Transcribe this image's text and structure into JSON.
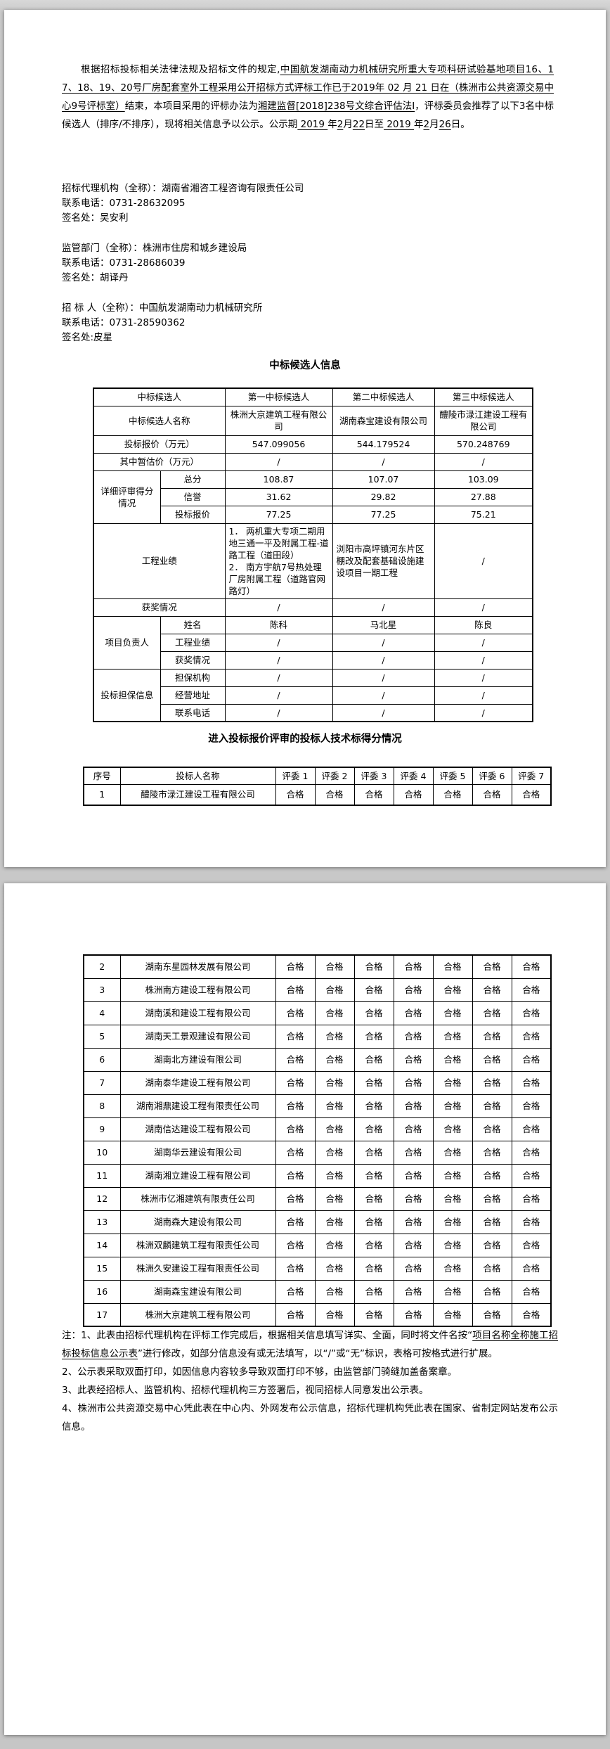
{
  "page1": {
    "intro_segments": [
      {
        "t": "根据招标投标相关法律法规及招标文件的规定,"
      },
      {
        "t": "中国航发湖南动力机械研究所重大专项科研试验基地项目16、17、18、19、20号厂房配套室外工程采用公开招标方式评标工作已于2019年 02 月 21 日在（株洲市公共资源交易中心9号评标室）",
        "u": true
      },
      {
        "t": "结束，本项目采用的评标办法为"
      },
      {
        "t": "湘建监督[2018]238号文综合评估法I",
        "u": true
      },
      {
        "t": "，评标委员会推荐了以下3名中标候选人（排序/不排序），现将相关信息予以公示。公示期"
      },
      {
        "t": " 2019 ",
        "u": true
      },
      {
        "t": "年"
      },
      {
        "t": "2",
        "u": true
      },
      {
        "t": "月"
      },
      {
        "t": "22",
        "u": true
      },
      {
        "t": "日至"
      },
      {
        "t": " 2019 ",
        "u": true
      },
      {
        "t": "年"
      },
      {
        "t": "2",
        "u": true
      },
      {
        "t": "月"
      },
      {
        "t": "26",
        "u": true
      },
      {
        "t": "日。"
      }
    ],
    "contacts": [
      {
        "lines": [
          "招标代理机构（全称）：湖南省湘咨工程咨询有限责任公司",
          "联系电话：0731-28632095",
          "签名处：吴安利"
        ]
      },
      {
        "lines": [
          "监管部门（全称）：株洲市住房和城乡建设局",
          "联系电话：0731-28686039",
          "签名处：胡译丹"
        ]
      },
      {
        "lines": [
          "招 标 人（全称）：中国航发湖南动力机械研究所",
          "联系电话：0731-28590362",
          "签名处:皮星"
        ]
      }
    ],
    "candidate_table": {
      "title": "中标候选人信息",
      "rows": [
        [
          {
            "t": "中标候选人",
            "cs": 2
          },
          {
            "t": "第一中标候选人"
          },
          {
            "t": "第二中标候选人"
          },
          {
            "t": "第三中标候选人"
          }
        ],
        [
          {
            "t": "中标候选人名称",
            "cs": 2
          },
          {
            "t": "株洲大京建筑工程有限公司"
          },
          {
            "t": "湖南森宝建设有限公司"
          },
          {
            "t": "醴陵市渌江建设工程有限公司"
          }
        ],
        [
          {
            "t": "投标报价（万元）",
            "cs": 2
          },
          {
            "t": "547.099056"
          },
          {
            "t": "544.179524"
          },
          {
            "t": "570.248769"
          }
        ],
        [
          {
            "t": "其中暂估价（万元）",
            "cs": 2
          },
          {
            "t": "/"
          },
          {
            "t": "/"
          },
          {
            "t": "/"
          }
        ],
        [
          {
            "t": "详细评审得分情况",
            "rs": 3
          },
          {
            "t": "总分"
          },
          {
            "t": "108.87"
          },
          {
            "t": "107.07"
          },
          {
            "t": "103.09"
          }
        ],
        [
          {
            "t": "信誉"
          },
          {
            "t": "31.62"
          },
          {
            "t": "29.82"
          },
          {
            "t": "27.88"
          }
        ],
        [
          {
            "t": "投标报价"
          },
          {
            "t": "77.25"
          },
          {
            "t": "77.25"
          },
          {
            "t": "75.21"
          }
        ],
        [
          {
            "t": "工程业绩",
            "cs": 2
          },
          {
            "t": "1． 两机重大专项二期用地三通一平及附属工程-道路工程（道田段）\n2． 南方宇航7号热处理厂房附属工程（道路官网路灯）",
            "left": true,
            "pre": true
          },
          {
            "t": "浏阳市高坪镇河东片区棚改及配套基础设施建设项目一期工程",
            "left": true
          },
          {
            "t": "/"
          }
        ],
        [
          {
            "t": "获奖情况",
            "cs": 2
          },
          {
            "t": "/"
          },
          {
            "t": "/"
          },
          {
            "t": "/"
          }
        ],
        [
          {
            "t": "项目负责人",
            "rs": 3
          },
          {
            "t": "姓名"
          },
          {
            "t": "陈科"
          },
          {
            "t": "马北星"
          },
          {
            "t": "陈良"
          }
        ],
        [
          {
            "t": "工程业绩"
          },
          {
            "t": "/"
          },
          {
            "t": "/"
          },
          {
            "t": "/"
          }
        ],
        [
          {
            "t": "获奖情况"
          },
          {
            "t": "/"
          },
          {
            "t": "/"
          },
          {
            "t": "/"
          }
        ],
        [
          {
            "t": "投标担保信息",
            "rs": 3
          },
          {
            "t": "担保机构"
          },
          {
            "t": "/"
          },
          {
            "t": "/"
          },
          {
            "t": "/"
          }
        ],
        [
          {
            "t": "经营地址"
          },
          {
            "t": "/"
          },
          {
            "t": "/"
          },
          {
            "t": "/"
          }
        ],
        [
          {
            "t": "联系电话"
          },
          {
            "t": "/"
          },
          {
            "t": "/"
          },
          {
            "t": "/"
          }
        ]
      ]
    },
    "score_table": {
      "title": "进入投标报价评审的投标人技术标得分情况",
      "headers": [
        "序号",
        "投标人名称",
        "评委 1",
        "评委 2",
        "评委 3",
        "评委 4",
        "评委 5",
        "评委 6",
        "评委 7"
      ],
      "rows": [
        {
          "no": "1",
          "name": "醴陵市渌江建设工程有限公司",
          "scores": [
            "合格",
            "合格",
            "合格",
            "合格",
            "合格",
            "合格",
            "合格"
          ]
        }
      ]
    }
  },
  "page2": {
    "score_rows": [
      {
        "no": "2",
        "name": "湖南东星园林发展有限公司",
        "scores": [
          "合格",
          "合格",
          "合格",
          "合格",
          "合格",
          "合格",
          "合格"
        ]
      },
      {
        "no": "3",
        "name": "株洲南方建设工程有限公司",
        "scores": [
          "合格",
          "合格",
          "合格",
          "合格",
          "合格",
          "合格",
          "合格"
        ]
      },
      {
        "no": "4",
        "name": "湖南溪和建设工程有限公司",
        "scores": [
          "合格",
          "合格",
          "合格",
          "合格",
          "合格",
          "合格",
          "合格"
        ]
      },
      {
        "no": "5",
        "name": "湖南天工景观建设有限公司",
        "scores": [
          "合格",
          "合格",
          "合格",
          "合格",
          "合格",
          "合格",
          "合格"
        ]
      },
      {
        "no": "6",
        "name": "湖南北方建设有限公司",
        "scores": [
          "合格",
          "合格",
          "合格",
          "合格",
          "合格",
          "合格",
          "合格"
        ]
      },
      {
        "no": "7",
        "name": "湖南泰华建设工程有限公司",
        "scores": [
          "合格",
          "合格",
          "合格",
          "合格",
          "合格",
          "合格",
          "合格"
        ]
      },
      {
        "no": "8",
        "name": "湖南湘鼎建设工程有限责任公司",
        "scores": [
          "合格",
          "合格",
          "合格",
          "合格",
          "合格",
          "合格",
          "合格"
        ]
      },
      {
        "no": "9",
        "name": "湖南信达建设工程有限公司",
        "scores": [
          "合格",
          "合格",
          "合格",
          "合格",
          "合格",
          "合格",
          "合格"
        ]
      },
      {
        "no": "10",
        "name": "湖南华云建设有限公司",
        "scores": [
          "合格",
          "合格",
          "合格",
          "合格",
          "合格",
          "合格",
          "合格"
        ]
      },
      {
        "no": "11",
        "name": "湖南湘立建设工程有限公司",
        "scores": [
          "合格",
          "合格",
          "合格",
          "合格",
          "合格",
          "合格",
          "合格"
        ]
      },
      {
        "no": "12",
        "name": "株洲市亿湘建筑有限责任公司",
        "scores": [
          "合格",
          "合格",
          "合格",
          "合格",
          "合格",
          "合格",
          "合格"
        ]
      },
      {
        "no": "13",
        "name": "湖南森大建设有限公司",
        "scores": [
          "合格",
          "合格",
          "合格",
          "合格",
          "合格",
          "合格",
          "合格"
        ]
      },
      {
        "no": "14",
        "name": "株洲双麟建筑工程有限责任公司",
        "scores": [
          "合格",
          "合格",
          "合格",
          "合格",
          "合格",
          "合格",
          "合格"
        ]
      },
      {
        "no": "15",
        "name": "株洲久安建设工程有限责任公司",
        "scores": [
          "合格",
          "合格",
          "合格",
          "合格",
          "合格",
          "合格",
          "合格"
        ]
      },
      {
        "no": "16",
        "name": "湖南森宝建设有限公司",
        "scores": [
          "合格",
          "合格",
          "合格",
          "合格",
          "合格",
          "合格",
          "合格"
        ]
      },
      {
        "no": "17",
        "name": "株洲大京建筑工程有限公司",
        "scores": [
          "合格",
          "合格",
          "合格",
          "合格",
          "合格",
          "合格",
          "合格"
        ]
      }
    ],
    "notes": [
      [
        {
          "t": "注：1、此表由招标代理机构在评标工作完成后，根据相关信息填写详实、全面，同时将文件名按“"
        },
        {
          "t": "项目名称全称施工招标投标信息公示表",
          "u": true
        },
        {
          "t": "”进行修改，如部分信息没有或无法填写，以“/”或“无”标识，表格可按格式进行扩展。"
        }
      ],
      [
        {
          "t": "2、公示表采取双面打印，如因信息内容较多导致双面打印不够，由监管部门骑缝加盖备案章。"
        }
      ],
      [
        {
          "t": "3、此表经招标人、监管机构、招标代理机构三方签署后，视同招标人同意发出公示表。"
        }
      ],
      [
        {
          "t": "4、株洲市公共资源交易中心凭此表在中心内、外网发布公示信息，招标代理机构凭此表在国家、省制定网站发布公示信息。"
        }
      ]
    ]
  }
}
